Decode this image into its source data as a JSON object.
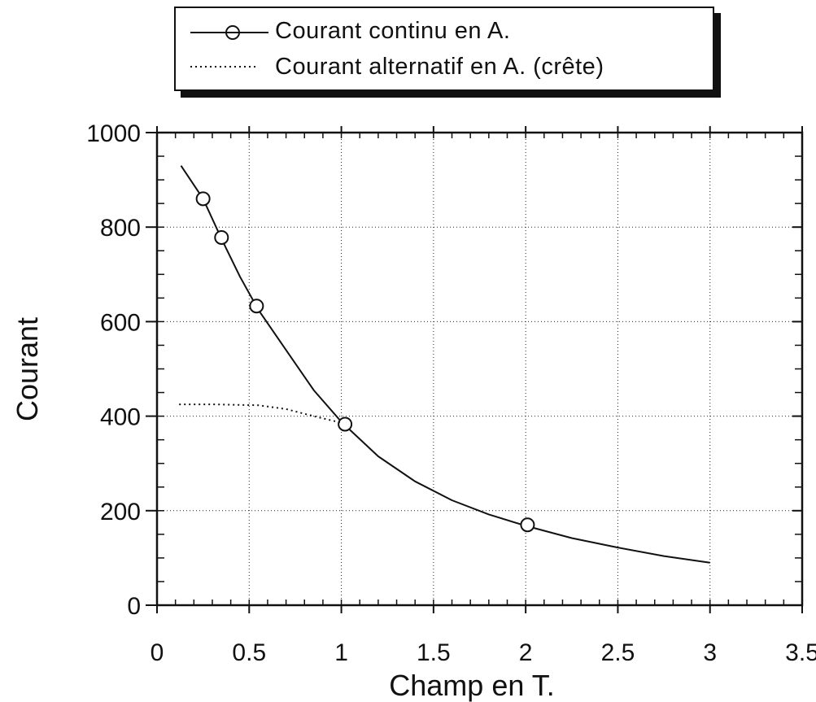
{
  "chart_data": {
    "type": "line",
    "xlabel": "Champ en T.",
    "ylabel": "Courant",
    "xlim": [
      0,
      3.5
    ],
    "ylim": [
      0,
      1000
    ],
    "x_ticks": [
      "0",
      "0.5",
      "1",
      "1.5",
      "2",
      "2.5",
      "3",
      "3.5"
    ],
    "y_ticks": [
      "0",
      "200",
      "400",
      "600",
      "800",
      "1000"
    ],
    "grid": true,
    "legend_placement": "top",
    "series": [
      {
        "name": "Courant continu en A.",
        "style": "solid",
        "marker": "circle",
        "color": "#111111",
        "curve": [
          {
            "x": 0.13,
            "y": 930
          },
          {
            "x": 0.25,
            "y": 860
          },
          {
            "x": 0.35,
            "y": 775
          },
          {
            "x": 0.45,
            "y": 695
          },
          {
            "x": 0.55,
            "y": 625
          },
          {
            "x": 0.7,
            "y": 540
          },
          {
            "x": 0.85,
            "y": 455
          },
          {
            "x": 1.0,
            "y": 388
          },
          {
            "x": 1.2,
            "y": 315
          },
          {
            "x": 1.4,
            "y": 262
          },
          {
            "x": 1.6,
            "y": 222
          },
          {
            "x": 1.8,
            "y": 192
          },
          {
            "x": 2.0,
            "y": 168
          },
          {
            "x": 2.25,
            "y": 142
          },
          {
            "x": 2.5,
            "y": 122
          },
          {
            "x": 2.75,
            "y": 104
          },
          {
            "x": 3.0,
            "y": 90
          }
        ],
        "markers": [
          {
            "x": 0.25,
            "y": 860
          },
          {
            "x": 0.35,
            "y": 778
          },
          {
            "x": 0.54,
            "y": 633
          },
          {
            "x": 1.02,
            "y": 383
          },
          {
            "x": 2.01,
            "y": 170
          }
        ]
      },
      {
        "name": "Courant alternatif en A. (crête)",
        "style": "dotted",
        "color": "#111111",
        "curve": [
          {
            "x": 0.12,
            "y": 425
          },
          {
            "x": 0.3,
            "y": 425
          },
          {
            "x": 0.55,
            "y": 423
          },
          {
            "x": 0.7,
            "y": 415
          },
          {
            "x": 0.85,
            "y": 400
          },
          {
            "x": 1.0,
            "y": 386
          }
        ]
      }
    ]
  }
}
